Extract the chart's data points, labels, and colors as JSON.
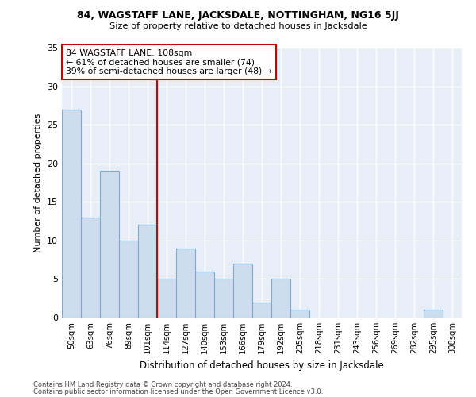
{
  "title1": "84, WAGSTAFF LANE, JACKSDALE, NOTTINGHAM, NG16 5JJ",
  "title2": "Size of property relative to detached houses in Jacksdale",
  "xlabel": "Distribution of detached houses by size in Jacksdale",
  "ylabel": "Number of detached properties",
  "categories": [
    "50sqm",
    "63sqm",
    "76sqm",
    "89sqm",
    "101sqm",
    "114sqm",
    "127sqm",
    "140sqm",
    "153sqm",
    "166sqm",
    "179sqm",
    "192sqm",
    "205sqm",
    "218sqm",
    "231sqm",
    "243sqm",
    "256sqm",
    "269sqm",
    "282sqm",
    "295sqm",
    "308sqm"
  ],
  "values": [
    27,
    13,
    19,
    10,
    12,
    5,
    9,
    6,
    5,
    7,
    2,
    5,
    1,
    0,
    0,
    0,
    0,
    0,
    0,
    1,
    0
  ],
  "bar_color": "#cddcee",
  "bar_edge_color": "#7aadd4",
  "vline_x_index": 4.5,
  "annotation_line1": "84 WAGSTAFF LANE: 108sqm",
  "annotation_line2": "← 61% of detached houses are smaller (74)",
  "annotation_line3": "39% of semi-detached houses are larger (48) →",
  "vline_color": "#cc0000",
  "annotation_box_facecolor": "#ffffff",
  "annotation_box_edgecolor": "#cc0000",
  "background_color": "#e8eef8",
  "grid_color": "#ffffff",
  "ylim": [
    0,
    35
  ],
  "yticks": [
    0,
    5,
    10,
    15,
    20,
    25,
    30,
    35
  ],
  "footer1": "Contains HM Land Registry data © Crown copyright and database right 2024.",
  "footer2": "Contains public sector information licensed under the Open Government Licence v3.0."
}
